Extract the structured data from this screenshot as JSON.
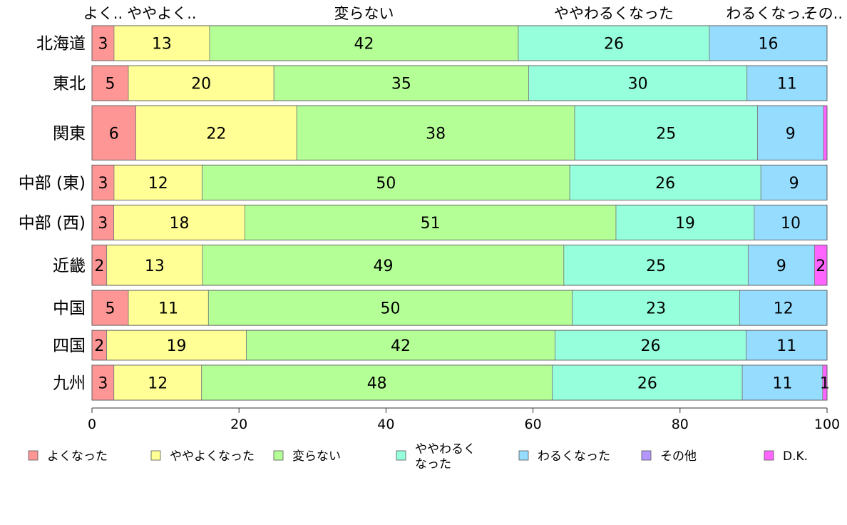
{
  "chart_data": {
    "type": "bar",
    "orientation": "horizontal",
    "stacked": "percent",
    "xlim": [
      0,
      100
    ],
    "x_ticks": [
      "0",
      "20",
      "40",
      "60",
      "80",
      "100"
    ],
    "top_labels": [
      "よく..",
      "ややよく..",
      "変らない",
      "ややわるくなった",
      "わるくなっ..",
      "その.."
    ],
    "categories": [
      "北海道",
      "東北",
      "関東",
      "中部 (東)",
      "中部 (西)",
      "近畿",
      "中国",
      "四国",
      "九州"
    ],
    "series": [
      {
        "name": "よくなった",
        "color": "#ff9696",
        "values": [
          3,
          5,
          6,
          3,
          3,
          2,
          5,
          2,
          3
        ],
        "labels": [
          "3",
          "5",
          "6",
          "3",
          "3",
          "2",
          "5",
          "2",
          "3"
        ]
      },
      {
        "name": "ややよくなった",
        "color": "#ffff96",
        "values": [
          13,
          20,
          22,
          12,
          18,
          13,
          11,
          19,
          12
        ],
        "labels": [
          "13",
          "20",
          "22",
          "12",
          "18",
          "13",
          "11",
          "19",
          "12"
        ]
      },
      {
        "name": "変らない",
        "color": "#b4ff96",
        "values": [
          42,
          35,
          38,
          50,
          51,
          49,
          50,
          42,
          48
        ],
        "labels": [
          "42",
          "35",
          "38",
          "50",
          "51",
          "49",
          "50",
          "42",
          "48"
        ]
      },
      {
        "name": "ややわるく\nなった",
        "color": "#96ffdc",
        "values": [
          26,
          30,
          25,
          26,
          19,
          25,
          23,
          26,
          26
        ],
        "labels": [
          "26",
          "30",
          "25",
          "26",
          "19",
          "25",
          "23",
          "26",
          "26"
        ]
      },
      {
        "name": "わるくなった",
        "color": "#96dcff",
        "values": [
          16,
          11,
          9,
          9,
          10,
          9,
          12,
          11,
          11
        ],
        "labels": [
          "16",
          "11",
          "9",
          "9",
          "10",
          "9",
          "12",
          "11",
          "11"
        ]
      },
      {
        "name": "その他",
        "color": "#b496ff",
        "values": [
          0,
          0,
          0,
          0,
          0,
          0,
          0,
          0,
          0
        ],
        "labels": [
          "",
          "",
          "",
          "",
          "",
          "",
          "",
          "",
          ""
        ]
      },
      {
        "name": "D.K.",
        "color": "#ff64ff",
        "values": [
          0,
          0,
          0.5,
          0,
          0,
          1.7,
          0,
          0,
          0.6
        ],
        "labels": [
          "",
          "",
          "",
          "",
          "",
          "2",
          "",
          "",
          "1"
        ]
      }
    ],
    "bar_weights": [
      1,
      1,
      1.55,
      1,
      1,
      1.15,
      1,
      0.85,
      1
    ]
  }
}
